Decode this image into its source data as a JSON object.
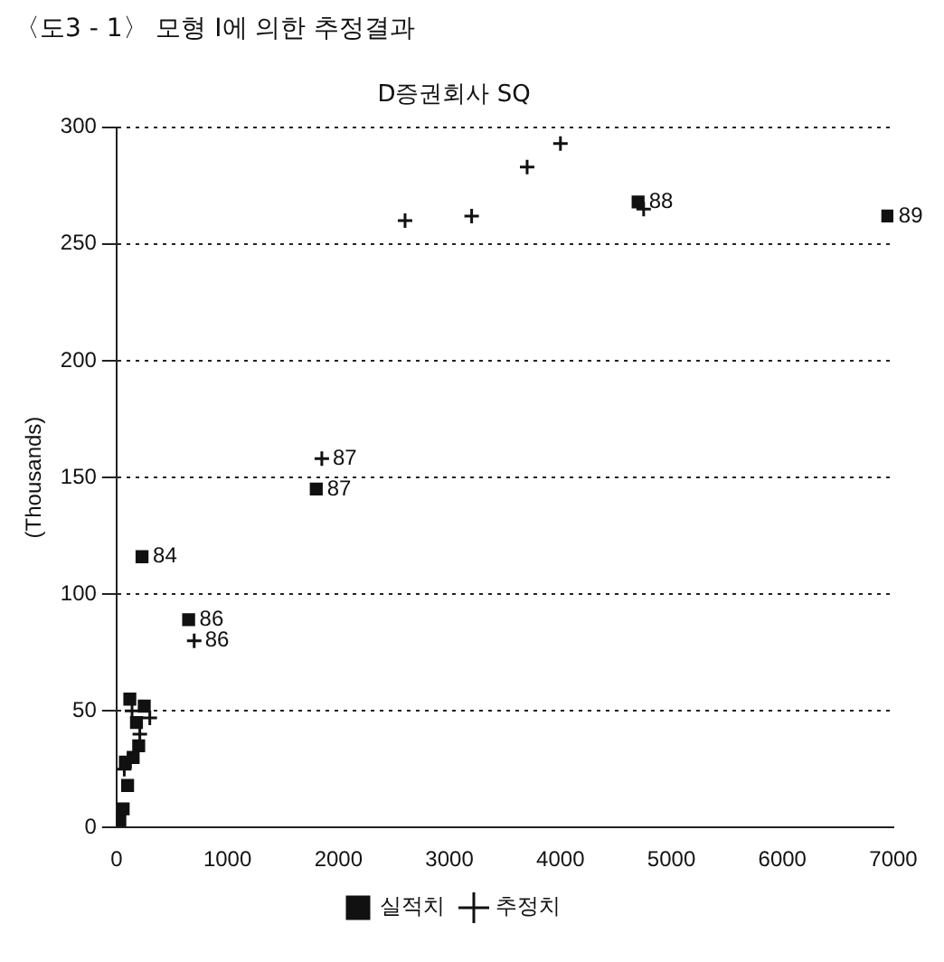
{
  "chart_data": {
    "type": "scatter",
    "title": "〈도3 - 1〉 모형 I에 의한 추정결과",
    "subtitle": "D증권회사 SQ",
    "ylabel": "(Thousands)",
    "xlim": [
      0,
      7000
    ],
    "xticks": [
      0,
      1000,
      2000,
      3000,
      4000,
      5000,
      6000,
      7000
    ],
    "ylim": [
      0,
      300
    ],
    "yticks": [
      0,
      50,
      100,
      150,
      200,
      250,
      300
    ],
    "grid": "y",
    "legend": "bottom",
    "series": [
      {
        "name": "실적치",
        "color": "#111111",
        "marker": "square",
        "x": [
          30,
          60,
          100,
          80,
          150,
          200,
          120,
          250,
          180,
          230,
          650,
          1800,
          4700,
          6950
        ],
        "values": [
          3,
          8,
          18,
          28,
          30,
          35,
          55,
          52,
          45,
          116,
          89,
          145,
          268,
          262
        ]
      },
      {
        "name": "추정치",
        "color": "#111111",
        "marker": "cross",
        "x": [
          70,
          210,
          140,
          300,
          700,
          1850,
          2600,
          3200,
          3700,
          4000,
          4750
        ],
        "values": [
          25,
          40,
          50,
          47,
          80,
          158,
          260,
          262,
          283,
          293,
          265
        ]
      }
    ],
    "annotations": [
      {
        "text": "84",
        "x": 230,
        "y": 116
      },
      {
        "text": "86",
        "x": 650,
        "y": 89
      },
      {
        "text": "86",
        "x": 700,
        "y": 80
      },
      {
        "text": "87",
        "x": 1800,
        "y": 145
      },
      {
        "text": "87",
        "x": 1850,
        "y": 158
      },
      {
        "text": "88",
        "x": 4700,
        "y": 268
      },
      {
        "text": "89",
        "x": 6950,
        "y": 262
      }
    ]
  }
}
